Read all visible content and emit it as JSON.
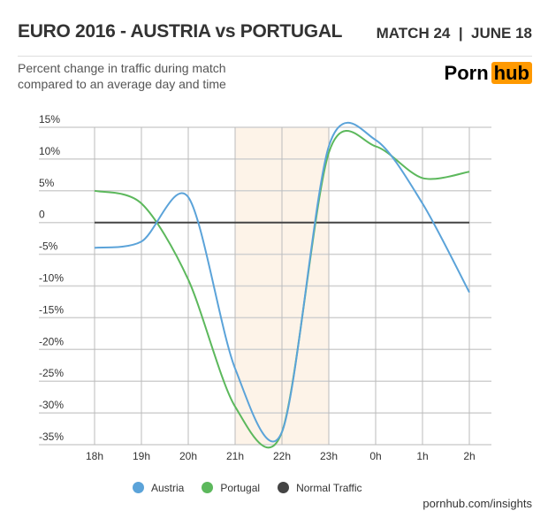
{
  "header": {
    "title": "EURO 2016 - AUSTRIA vs PORTUGAL",
    "match": "MATCH 24  |  JUNE 18",
    "subtitle_line1": "Percent change in traffic during match",
    "subtitle_line2": "compared to an average day and time",
    "logo_part1": "Porn",
    "logo_part2": "hub"
  },
  "source": "pornhub.com/insights",
  "chart_data": {
    "type": "line",
    "categories": [
      "18h",
      "19h",
      "20h",
      "21h",
      "22h",
      "23h",
      "0h",
      "1h",
      "2h"
    ],
    "yticks": [
      15,
      10,
      5,
      0,
      -5,
      -10,
      -15,
      -20,
      -25,
      -30,
      -35
    ],
    "ytick_labels": [
      "15%",
      "10%",
      "5%",
      "0",
      "-5%",
      "-10%",
      "-15%",
      "-20%",
      "-25%",
      "-30%",
      "-35%"
    ],
    "ylim": [
      -35,
      15
    ],
    "grid": true,
    "highlight_range": [
      "21h",
      "23h"
    ],
    "highlight_color": "#fdf3e8",
    "series": [
      {
        "name": "Austria",
        "color": "#5ba3d9",
        "values": [
          -4,
          -3,
          4,
          -23,
          -33,
          12,
          13,
          3,
          -11
        ]
      },
      {
        "name": "Portugal",
        "color": "#5cb85c",
        "values": [
          5,
          3,
          -9,
          -29,
          -33,
          11,
          12,
          7,
          8
        ]
      },
      {
        "name": "Normal Traffic",
        "color": "#444444",
        "values": [
          0,
          0,
          0,
          0,
          0,
          0,
          0,
          0,
          0
        ]
      }
    ],
    "legend_position": "bottom"
  }
}
